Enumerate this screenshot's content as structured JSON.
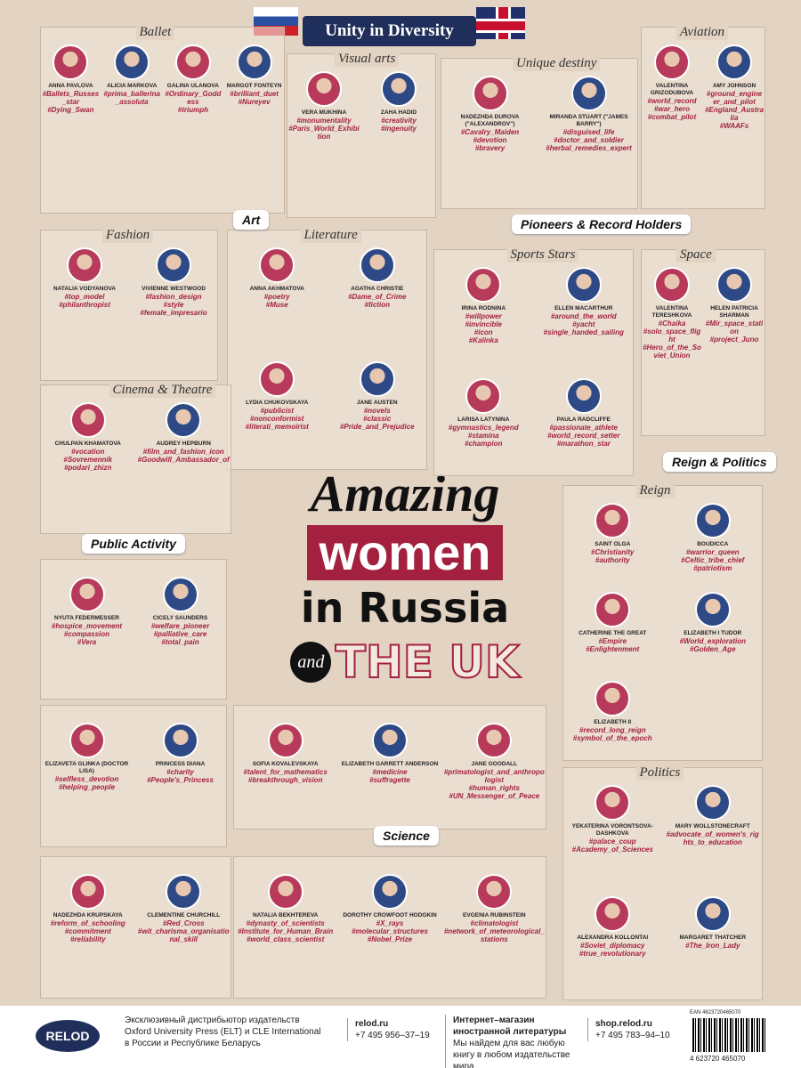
{
  "header": {
    "banner": "Unity in Diversity"
  },
  "main_title": {
    "line1": "Amazing",
    "line2": "women",
    "line3": "in Russia",
    "and": "and",
    "line4": "THE UK"
  },
  "categories": [
    "Art",
    "Pioneers & Record Holders",
    "Reign & Politics",
    "Public Activity",
    "Science"
  ],
  "sections": [
    {
      "title": "Ballet",
      "people": [
        {
          "name": "ANNA PAVLOVA",
          "tags": [
            "#Ballets_Russes_star",
            "#Dying_Swan"
          ]
        },
        {
          "name": "ALICIA MARKOVA",
          "tags": [
            "#prima_ballerina_assoluta"
          ]
        },
        {
          "name": "GALINA ULANOVA",
          "tags": [
            "#Ordinary_Goddess",
            "#triumph"
          ]
        },
        {
          "name": "MARGOT FONTEYN",
          "tags": [
            "#brilliant_duet",
            "#Nureyev"
          ]
        }
      ]
    },
    {
      "title": "Visual arts",
      "people": [
        {
          "name": "VERA MUKHINA",
          "tags": [
            "#monumentality",
            "#Paris_World_Exhibition"
          ]
        },
        {
          "name": "ZAHA HADID",
          "tags": [
            "#creativity",
            "#ingenuity"
          ]
        }
      ]
    },
    {
      "title": "Unique destiny",
      "people": [
        {
          "name": "NADEZHDA DUROVA (\"ALEXANDROV\")",
          "tags": [
            "#Cavalry_Maiden",
            "#devotion",
            "#bravery"
          ]
        },
        {
          "name": "MIRANDA STUART (\"JAMES BARRY\")",
          "tags": [
            "#disguised_life",
            "#doctor_and_soldier",
            "#herbal_remedies_expert"
          ]
        }
      ]
    },
    {
      "title": "Aviation",
      "people": [
        {
          "name": "VALENTINA GRIZODUBOVA",
          "tags": [
            "#world_record",
            "#war_hero",
            "#combat_pilot"
          ]
        },
        {
          "name": "AMY JOHNSON",
          "tags": [
            "#ground_engineer_and_pilot",
            "#England_Australia",
            "#WAAFs"
          ]
        }
      ]
    },
    {
      "title": "Fashion",
      "people": [
        {
          "name": "NATALIA VODYANOVA",
          "tags": [
            "#top_model",
            "#philanthropist"
          ]
        },
        {
          "name": "VIVIENNE WESTWOOD",
          "tags": [
            "#fashion_design",
            "#style",
            "#female_impresario"
          ]
        }
      ]
    },
    {
      "title": "Literature",
      "people": [
        {
          "name": "ANNA AKHMATOVA",
          "tags": [
            "#poetry",
            "#Muse"
          ]
        },
        {
          "name": "AGATHA CHRISTIE",
          "tags": [
            "#Dame_of_Crime",
            "#fiction"
          ]
        },
        {
          "name": "LYDIA CHUKOVSKAYA",
          "tags": [
            "#publicist",
            "#nonconformist",
            "#literati_memoirist"
          ]
        },
        {
          "name": "JANE AUSTEN",
          "tags": [
            "#novels",
            "#classic",
            "#Pride_and_Prejudice"
          ]
        }
      ]
    },
    {
      "title": "Sports Stars",
      "people": [
        {
          "name": "IRINA RODNINA",
          "tags": [
            "#willpower",
            "#invincible",
            "#icon",
            "#Kalinka"
          ]
        },
        {
          "name": "ELLEN MACARTHUR",
          "tags": [
            "#around_the_world",
            "#yacht",
            "#single_handed_sailing"
          ]
        },
        {
          "name": "LARISA LATYNINA",
          "tags": [
            "#gymnastics_legend",
            "#stamina",
            "#champion"
          ]
        },
        {
          "name": "PAULA RADCLIFFE",
          "tags": [
            "#passionate_athlete",
            "#world_record_setter",
            "#marathon_star"
          ]
        }
      ]
    },
    {
      "title": "Space",
      "people": [
        {
          "name": "VALENTINA TERESHKOVA",
          "tags": [
            "#Chaika",
            "#solo_space_flight",
            "#Hero_of_the_Soviet_Union"
          ]
        },
        {
          "name": "HELEN PATRICIA SHARMAN",
          "tags": [
            "#Mir_space_station",
            "#project_Juno"
          ]
        }
      ]
    },
    {
      "title": "Cinema & Theatre",
      "people": [
        {
          "name": "CHULPAN KHAMATOVA",
          "tags": [
            "#vocation",
            "#Sovremennik",
            "#podari_zhizn"
          ]
        },
        {
          "name": "AUDREY HEPBURN",
          "tags": [
            "#film_and_fashion_icon",
            "#Goodwill_Ambassador_of"
          ]
        }
      ]
    },
    {
      "people": [
        {
          "name": "NYUTA FEDERMESSER",
          "tags": [
            "#hospice_movement",
            "#compassion",
            "#Vera"
          ]
        },
        {
          "name": "CICELY SAUNDERS",
          "tags": [
            "#welfare_pioneer",
            "#palliative_care",
            "#total_pain"
          ]
        }
      ]
    },
    {
      "people": [
        {
          "name": "ELIZAVETA GLINKA (DOCTOR LISA)",
          "tags": [
            "#selfless_devotion",
            "#helping_people"
          ]
        },
        {
          "name": "PRINCESS DIANA",
          "tags": [
            "#charity",
            "#People's_Princess"
          ]
        }
      ]
    },
    {
      "people": [
        {
          "name": "SOFIA KOVALEVSKAYA",
          "tags": [
            "#talent_for_mathematics",
            "#breakthrough_vision"
          ]
        },
        {
          "name": "ELIZABETH GARRETT ANDERSON",
          "tags": [
            "#medicine",
            "#suffragette"
          ]
        },
        {
          "name": "JANE GOODALL",
          "tags": [
            "#primatologist_and_anthropologist",
            "#human_rights",
            "#UN_Messenger_of_Peace"
          ]
        }
      ]
    },
    {
      "people": [
        {
          "name": "NADEZHDA KRUPSKAYA",
          "tags": [
            "#reform_of_schooling",
            "#commitment",
            "#reliability"
          ]
        },
        {
          "name": "CLEMENTINE CHURCHILL",
          "tags": [
            "#Red_Cross",
            "#wit_charisma_organisational_skill"
          ]
        }
      ]
    },
    {
      "people": [
        {
          "name": "NATALIA BEKHTEREVA",
          "tags": [
            "#dynasty_of_scientists",
            "#Institute_for_Human_Brain",
            "#world_class_scientist"
          ]
        },
        {
          "name": "DOROTHY CROWFOOT HODGKIN",
          "tags": [
            "#X_rays",
            "#molecular_structures",
            "#Nobel_Prize"
          ]
        },
        {
          "name": "EVGENIA RUBINSTEIN",
          "tags": [
            "#climatologist",
            "#network_of_meteorological_stations"
          ]
        }
      ]
    },
    {
      "title": "Reign",
      "people": [
        {
          "name": "SAINT OLGA",
          "tags": [
            "#Christianity",
            "#authority"
          ]
        },
        {
          "name": "BOUDICCA",
          "tags": [
            "#warrior_queen",
            "#Celtic_tribe_chief",
            "#patriotism"
          ]
        },
        {
          "name": "CATHERINE THE GREAT",
          "tags": [
            "#Empire",
            "#Enlightenment"
          ]
        },
        {
          "name": "ELIZABETH I TUDOR",
          "tags": [
            "#World_exploration",
            "#Golden_Age"
          ]
        },
        {
          "name": "ELIZABETH II",
          "tags": [
            "#record_long_reign",
            "#symbol_of_the_epoch"
          ]
        }
      ]
    },
    {
      "title": "Politics",
      "people": [
        {
          "name": "YEKATERINA VORONTSOVA-DASHKOVA",
          "tags": [
            "#palace_coup",
            "#Academy_of_Sciences"
          ]
        },
        {
          "name": "MARY WOLLSTONECRAFT",
          "tags": [
            "#advocate_of_women's_rights_to_education"
          ]
        },
        {
          "name": "ALEXANDRA KOLLONTAI",
          "tags": [
            "#Soviet_diplomacy",
            "#true_revolutionary"
          ]
        },
        {
          "name": "MARGARET THATCHER",
          "tags": [
            "#The_Iron_Lady"
          ]
        }
      ]
    }
  ],
  "footer": {
    "logo": "RELOD",
    "distributor": [
      "Эксклюзивный дистрибьютор издательств",
      "Oxford University Press (ELT) и CLE International",
      "в России и Республике Беларусь"
    ],
    "site": "relod.ru",
    "phone1": "+7 495 956–37–19",
    "shop_title": "Интернет–магазин иностранной литературы",
    "shop_text": "Мы найдем для вас любую книгу в любом издательстве мира",
    "shop_site": "shop.relod.ru",
    "phone2": "+7 495 783–94–10",
    "ean": "EAN 4623720465070",
    "barcode": "4 623720 465070"
  }
}
